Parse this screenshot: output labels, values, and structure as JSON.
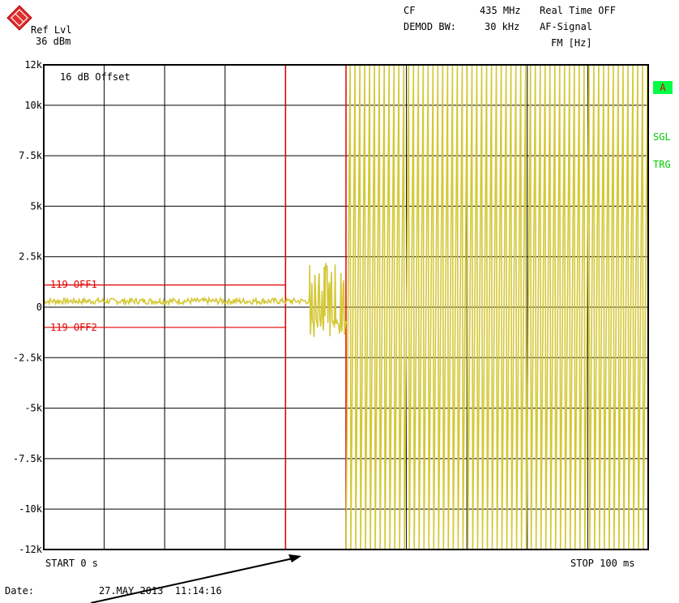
{
  "header": {
    "ref_lvl_label": "Ref Lvl",
    "ref_lvl_value": "36 dBm",
    "cf_label": "CF",
    "cf_value": "435 MHz",
    "realtime": "Real Time OFF",
    "demod_bw_label": "DEMOD BW:",
    "demod_bw_value": "30 kHz",
    "af_signal": "AF-Signal",
    "fm_unit": "FM [Hz]"
  },
  "plot": {
    "offset_note": "16 dB Offset",
    "limit_line_1": "119 OFF1",
    "limit_line_2": "119 OFF2",
    "start_label": "START 0 s",
    "stop_label": "STOP 100 ms"
  },
  "side_labels": {
    "trace": "A",
    "sweep": "SGL",
    "trigger": "TRG"
  },
  "footer": {
    "date_label": "Date:",
    "date_value": "27.MAY 2013  11:14:16"
  },
  "colors": {
    "trace": "#d4c836",
    "limit": "#e00000",
    "grid": "#000000",
    "side_text": "#00cc00"
  },
  "chart_data": {
    "type": "line",
    "x_unit": "ms",
    "x_range": [
      0,
      100
    ],
    "ylim": [
      -12000,
      12000
    ],
    "y_ticks": [
      12000,
      10000,
      7500,
      5000,
      2500,
      0,
      -2500,
      -5000,
      -7500,
      -10000,
      -12000
    ],
    "y_tick_labels": [
      "12k",
      "10k",
      "7.5k",
      "5k",
      "2.5k",
      "0",
      "-2.5k",
      "-5k",
      "-7.5k",
      "-10k",
      "-12k"
    ],
    "grid": true,
    "series": [
      {
        "segment": "steady",
        "x_start": 0,
        "x_end": 44,
        "value": 300
      },
      {
        "segment": "transient",
        "x_start": 44,
        "x_end": 50,
        "min": -1500,
        "max": 2200
      },
      {
        "segment": "modulated",
        "x_start": 50,
        "x_end": 100,
        "min": -12000,
        "max": 12000,
        "cycles": 62
      }
    ],
    "limit_lines": [
      {
        "label": "119 OFF1",
        "value": 1100,
        "x_end": 40
      },
      {
        "label": "119 OFF2",
        "value": -1000,
        "x_end": 40
      }
    ],
    "marker_box": {
      "x_start": 40,
      "x_end": 50
    }
  }
}
